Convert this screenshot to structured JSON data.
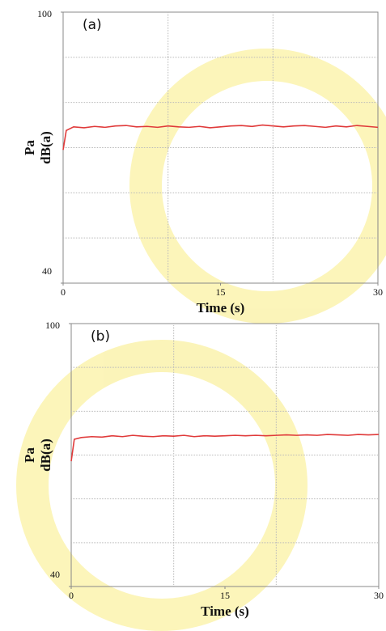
{
  "chart_data": [
    {
      "type": "line",
      "title": "(a)",
      "xlabel": "Time (s)",
      "ylabel_lines": [
        "Pa",
        "dB(a)"
      ],
      "xlim": [
        0,
        30
      ],
      "xticks": [
        0,
        15,
        30
      ],
      "ylim": [
        40,
        100
      ],
      "yticks": [
        40,
        100
      ],
      "x_gridlines": [
        10,
        20
      ],
      "y_gridlines": [
        50,
        60,
        70,
        80,
        90
      ],
      "grid": true,
      "x": [
        0,
        0.3,
        1,
        2,
        3,
        4,
        5,
        6,
        7,
        8,
        9,
        10,
        11,
        12,
        13,
        14,
        15,
        16,
        17,
        18,
        19,
        20,
        21,
        22,
        23,
        24,
        25,
        26,
        27,
        28,
        29,
        30
      ],
      "series": [
        {
          "color": "#e03a3a",
          "values": [
            69.5,
            73.8,
            74.6,
            74.4,
            74.7,
            74.5,
            74.8,
            74.9,
            74.6,
            74.7,
            74.5,
            74.8,
            74.6,
            74.5,
            74.7,
            74.4,
            74.6,
            74.8,
            74.9,
            74.7,
            75.0,
            74.8,
            74.6,
            74.8,
            74.9,
            74.7,
            74.5,
            74.8,
            74.6,
            74.9,
            74.7,
            74.5
          ]
        }
      ]
    },
    {
      "type": "line",
      "title": "(b)",
      "xlabel": "Time (s)",
      "ylabel_lines": [
        "Pa",
        "dB(a)"
      ],
      "xlim": [
        0,
        30
      ],
      "xticks": [
        0,
        15,
        30
      ],
      "ylim": [
        40,
        100
      ],
      "yticks": [
        40,
        100
      ],
      "x_gridlines": [
        10,
        20
      ],
      "y_gridlines": [
        50,
        60,
        70,
        80,
        90
      ],
      "grid": true,
      "x": [
        0,
        0.3,
        1,
        2,
        3,
        4,
        5,
        6,
        7,
        8,
        9,
        10,
        11,
        12,
        13,
        14,
        15,
        16,
        17,
        18,
        19,
        20,
        21,
        22,
        23,
        24,
        25,
        26,
        27,
        28,
        29,
        30
      ],
      "series": [
        {
          "color": "#e03a3a",
          "values": [
            68.6,
            73.6,
            74.0,
            74.2,
            74.1,
            74.4,
            74.2,
            74.5,
            74.3,
            74.2,
            74.4,
            74.3,
            74.5,
            74.2,
            74.4,
            74.3,
            74.4,
            74.5,
            74.4,
            74.5,
            74.4,
            74.5,
            74.6,
            74.5,
            74.6,
            74.5,
            74.7,
            74.6,
            74.5,
            74.7,
            74.6,
            74.7
          ]
        }
      ]
    }
  ]
}
